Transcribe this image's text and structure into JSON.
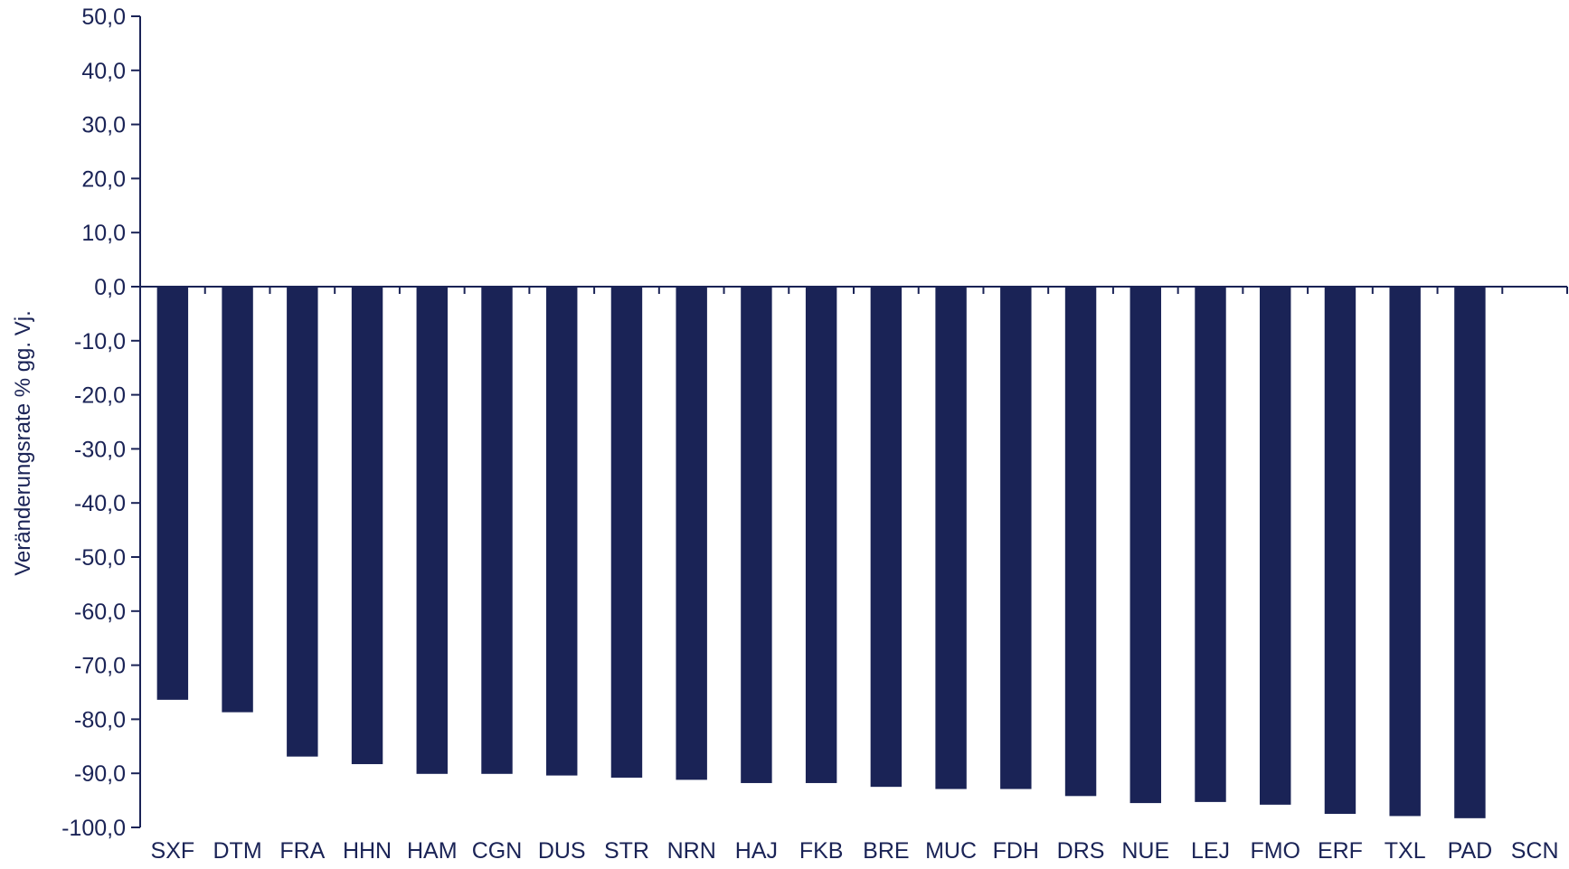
{
  "chart_data": {
    "type": "bar",
    "title": "",
    "xlabel": "",
    "ylabel": "Veränderungsrate  % gg. Vj.",
    "ylim": [
      -100,
      50
    ],
    "y_ticks": [
      "50,0",
      "40,0",
      "30,0",
      "20,0",
      "10,0",
      "0,0",
      "-10,0",
      "-20,0",
      "-30,0",
      "-40,0",
      "-50,0",
      "-60,0",
      "-70,0",
      "-80,0",
      "-90,0",
      "-100,0"
    ],
    "categories": [
      "SXF",
      "DTM",
      "FRA",
      "HHN",
      "HAM",
      "CGN",
      "DUS",
      "STR",
      "NRN",
      "HAJ",
      "FKB",
      "BRE",
      "MUC",
      "FDH",
      "DRS",
      "NUE",
      "LEJ",
      "FMO",
      "ERF",
      "TXL",
      "PAD",
      "SCN"
    ],
    "values": [
      -76.4,
      -78.7,
      -86.9,
      -88.3,
      -90.1,
      -90.1,
      -90.4,
      -90.8,
      -91.2,
      -91.8,
      -91.8,
      -92.5,
      -92.9,
      -92.9,
      -94.2,
      -95.5,
      -95.3,
      -95.8,
      -97.5,
      -97.9,
      -98.3,
      null
    ],
    "bar_color": "#1a2356",
    "grid": false,
    "legend": "none"
  }
}
